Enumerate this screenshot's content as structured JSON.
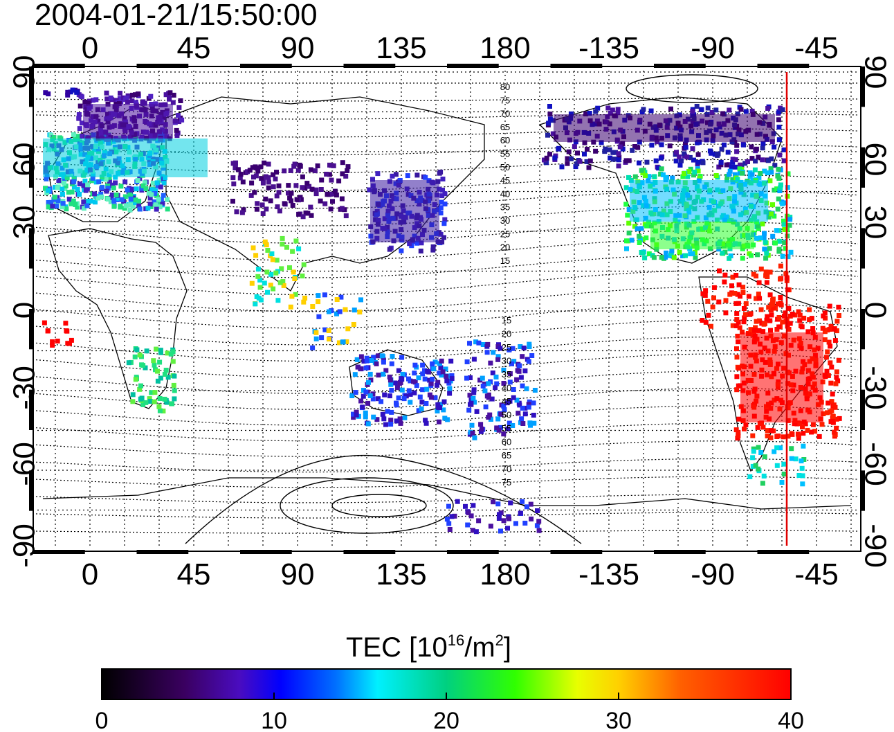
{
  "title": "2004-01-21/15:50:00",
  "map": {
    "top_lon_labels": [
      "0",
      "45",
      "90",
      "135",
      "180",
      "-135",
      "-90",
      "-45"
    ],
    "bottom_lon_labels": [
      "0",
      "45",
      "90",
      "135",
      "180",
      "-135",
      "-90",
      "-45"
    ],
    "left_lat_labels": [
      "90",
      "60",
      "30",
      "0",
      "-30",
      "-60",
      "-90"
    ],
    "right_lat_labels": [
      "90",
      "60",
      "30",
      "0",
      "-30",
      "-60",
      "-90"
    ],
    "contour_labels_north": [
      "80",
      "75",
      "70",
      "65",
      "60",
      "55",
      "50",
      "45",
      "40",
      "35",
      "30",
      "25",
      "20",
      "15"
    ],
    "contour_labels_south": [
      "15",
      "20",
      "25",
      "30",
      "35",
      "40",
      "45",
      "50",
      "55",
      "60",
      "65",
      "70",
      "75"
    ],
    "terminator_color": "#e00000"
  },
  "colorbar": {
    "title": "TEC  [10",
    "sup1": "16",
    "unit_mid": "/m",
    "sup2": "2",
    "unit_end": "]",
    "ticks": [
      "0",
      "10",
      "20",
      "30",
      "40"
    ],
    "range": [
      0,
      40
    ]
  },
  "colors": {
    "scale": [
      "#1a0000",
      "#3b0050",
      "#5a14a0",
      "#2020ff",
      "#00a0ff",
      "#00f0f0",
      "#00e060",
      "#20ff00",
      "#ffff00",
      "#ff8000",
      "#ff2000",
      "#ff0000"
    ]
  }
}
